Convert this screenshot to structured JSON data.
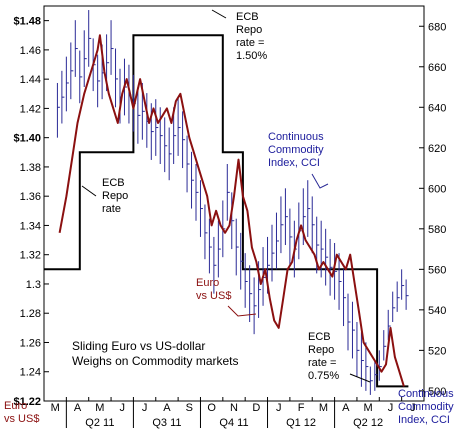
{
  "chart_data": {
    "type": "line",
    "title_lines": [
      "Sliding Euro vs US-dollar",
      "Weighs on Commodity markets"
    ],
    "left_axis": {
      "ylim": [
        1.22,
        1.49
      ],
      "ticks": [
        "$1.48",
        "1.46",
        "1.44",
        "1.42",
        "$1.40",
        "1.38",
        "1.36",
        "1.34",
        "1.32",
        "1.3",
        "1.28",
        "1.26",
        "1.24",
        "$1.22"
      ],
      "tick_values": [
        1.48,
        1.46,
        1.44,
        1.42,
        1.4,
        1.38,
        1.36,
        1.34,
        1.32,
        1.3,
        1.28,
        1.26,
        1.24,
        1.22
      ],
      "bottom_label_lines": [
        "Euro",
        "vs US$"
      ]
    },
    "right_axis": {
      "ylim": [
        495,
        690
      ],
      "ticks": [
        "680",
        "660",
        "640",
        "620",
        "600",
        "580",
        "560",
        "540",
        "520",
        "500"
      ],
      "tick_values": [
        680,
        660,
        640,
        620,
        600,
        580,
        560,
        540,
        520,
        500
      ],
      "bottom_label_lines": [
        "Continuous",
        "Commodity",
        "Index, CCI"
      ]
    },
    "x_axis": {
      "month_labels": [
        "M",
        "A",
        "M",
        "J",
        "J",
        "A",
        "S",
        "O",
        "N",
        "D",
        "J",
        "F",
        "M",
        "A",
        "M",
        "J",
        "J"
      ],
      "quarter_labels": [
        "Q2 11",
        "Q3 11",
        "Q4 11",
        "Q1 12",
        "Q2 12"
      ]
    },
    "series": [
      {
        "name": "Euro vs US$",
        "axis": "left",
        "color": "#8b1010",
        "x": [
          0.2,
          0.5,
          0.8,
          1.0,
          1.3,
          1.5,
          1.7,
          1.9,
          2.0,
          2.2,
          2.4,
          2.6,
          2.8,
          3.0,
          3.2,
          3.5,
          3.8,
          4.0,
          4.2,
          4.4,
          4.6,
          4.8,
          5.0,
          5.2,
          5.4,
          5.6,
          5.8,
          6.0,
          6.2,
          6.4,
          6.6,
          6.8,
          7.0,
          7.2,
          7.4,
          7.6,
          7.8,
          8.0,
          8.2,
          8.4,
          8.6,
          8.8,
          9.0,
          9.2,
          9.4,
          9.6,
          9.8,
          10.0,
          10.2,
          10.4,
          10.6,
          10.8,
          11.0,
          11.2,
          11.4,
          11.6,
          11.8,
          12.0,
          12.2,
          12.4,
          12.6,
          12.8,
          13.0,
          13.2,
          13.4,
          13.6,
          13.8,
          14.0,
          14.2,
          14.4,
          14.6,
          14.8,
          15.0,
          15.2,
          15.4,
          15.6
        ],
        "values": [
          1.335,
          1.36,
          1.39,
          1.41,
          1.43,
          1.44,
          1.45,
          1.46,
          1.47,
          1.445,
          1.43,
          1.42,
          1.41,
          1.43,
          1.44,
          1.42,
          1.44,
          1.425,
          1.41,
          1.42,
          1.41,
          1.415,
          1.42,
          1.41,
          1.425,
          1.43,
          1.415,
          1.4,
          1.39,
          1.38,
          1.37,
          1.36,
          1.34,
          1.35,
          1.34,
          1.335,
          1.34,
          1.36,
          1.385,
          1.36,
          1.35,
          1.325,
          1.315,
          1.3,
          1.31,
          1.29,
          1.275,
          1.27,
          1.29,
          1.31,
          1.315,
          1.33,
          1.34,
          1.33,
          1.325,
          1.32,
          1.31,
          1.315,
          1.31,
          1.305,
          1.32,
          1.315,
          1.31,
          1.32,
          1.3,
          1.28,
          1.26,
          1.255,
          1.25,
          1.245,
          1.24,
          1.245,
          1.27,
          1.25,
          1.24,
          1.23
        ]
      },
      {
        "name": "ECB Repo rate",
        "axis": "left",
        "color": "#000000",
        "type": "step",
        "x": [
          -0.5,
          1.1,
          1.1,
          3.5,
          3.5,
          7.5,
          7.5,
          8.4,
          8.4,
          14.4,
          14.4,
          15.8
        ],
        "values": [
          1.31,
          1.31,
          1.39,
          1.39,
          1.47,
          1.47,
          1.39,
          1.39,
          1.31,
          1.31,
          1.23,
          1.23
        ]
      },
      {
        "name": "Continuous Commodity Index, CCI",
        "axis": "right",
        "color": "#2a2a96",
        "type": "ohlc",
        "x": [
          0.1,
          0.3,
          0.5,
          0.7,
          0.9,
          1.1,
          1.3,
          1.5,
          1.7,
          1.9,
          2.1,
          2.3,
          2.5,
          2.7,
          2.9,
          3.1,
          3.3,
          3.5,
          3.7,
          3.9,
          4.1,
          4.3,
          4.5,
          4.7,
          4.9,
          5.1,
          5.3,
          5.5,
          5.7,
          5.9,
          6.1,
          6.3,
          6.5,
          6.7,
          6.9,
          7.1,
          7.3,
          7.5,
          7.7,
          7.9,
          8.1,
          8.3,
          8.5,
          8.7,
          8.9,
          9.1,
          9.3,
          9.5,
          9.7,
          9.9,
          10.1,
          10.3,
          10.5,
          10.7,
          10.9,
          11.1,
          11.3,
          11.5,
          11.7,
          11.9,
          12.1,
          12.3,
          12.5,
          12.7,
          12.9,
          13.1,
          13.3,
          13.5,
          13.7,
          13.9,
          14.1,
          14.3,
          14.5,
          14.7,
          14.9,
          15.1,
          15.3,
          15.5,
          15.7
        ],
        "high": [
          652,
          658,
          665,
          672,
          683,
          668,
          678,
          688,
          674,
          666,
          671,
          676,
          683,
          669,
          659,
          664,
          661,
          656,
          650,
          652,
          647,
          642,
          644,
          640,
          635,
          630,
          640,
          645,
          638,
          626,
          618,
          612,
          604,
          592,
          585,
          576,
          584,
          594,
          612,
          598,
          585,
          578,
          568,
          562,
          556,
          564,
          571,
          576,
          582,
          588,
          596,
          600,
          590,
          584,
          593,
          600,
          604,
          596,
          586,
          584,
          580,
          575,
          573,
          568,
          560,
          548,
          544,
          534,
          529,
          524,
          512,
          515,
          520,
          530,
          540,
          549,
          554,
          560,
          555
        ],
        "low": [
          625,
          632,
          638,
          644,
          655,
          642,
          650,
          660,
          648,
          640,
          644,
          648,
          656,
          640,
          632,
          636,
          632,
          628,
          622,
          624,
          620,
          614,
          616,
          612,
          608,
          604,
          612,
          616,
          610,
          598,
          590,
          584,
          576,
          565,
          558,
          548,
          556,
          566,
          584,
          570,
          557,
          550,
          541,
          534,
          528,
          536,
          542,
          548,
          554,
          560,
          568,
          572,
          562,
          556,
          565,
          572,
          576,
          568,
          558,
          556,
          552,
          547,
          545,
          540,
          532,
          520,
          516,
          507,
          502,
          500,
          498,
          500,
          505,
          515,
          525,
          534,
          539,
          545,
          540
        ],
        "close": [
          640,
          645,
          652,
          658,
          669,
          655,
          664,
          674,
          661,
          653,
          657,
          662,
          669,
          654,
          645,
          650,
          646,
          642,
          636,
          638,
          633,
          628,
          630,
          626,
          621,
          617,
          626,
          630,
          624,
          612,
          604,
          598,
          590,
          578,
          571,
          562,
          570,
          580,
          598,
          584,
          571,
          564,
          554,
          548,
          542,
          550,
          556,
          562,
          568,
          574,
          582,
          586,
          576,
          570,
          579,
          586,
          590,
          582,
          572,
          570,
          566,
          561,
          559,
          554,
          546,
          534,
          530,
          520,
          515,
          512,
          505,
          508,
          512,
          522,
          532,
          541,
          546,
          552,
          547
        ]
      }
    ],
    "annotations": [
      {
        "lines": [
          "ECB",
          "Repo",
          "rate =",
          "1.50%"
        ],
        "color": "black"
      },
      {
        "lines": [
          "ECB",
          "Repo",
          "rate"
        ],
        "color": "black"
      },
      {
        "lines": [
          "Continuous",
          "Commodity",
          "Index, CCI"
        ],
        "color": "blue"
      },
      {
        "lines": [
          "Euro",
          "vs US$"
        ],
        "color": "red"
      },
      {
        "lines": [
          "ECB",
          "Repo",
          "rate =",
          "0.75%"
        ],
        "color": "black"
      }
    ],
    "grid": false,
    "legend": "none"
  }
}
